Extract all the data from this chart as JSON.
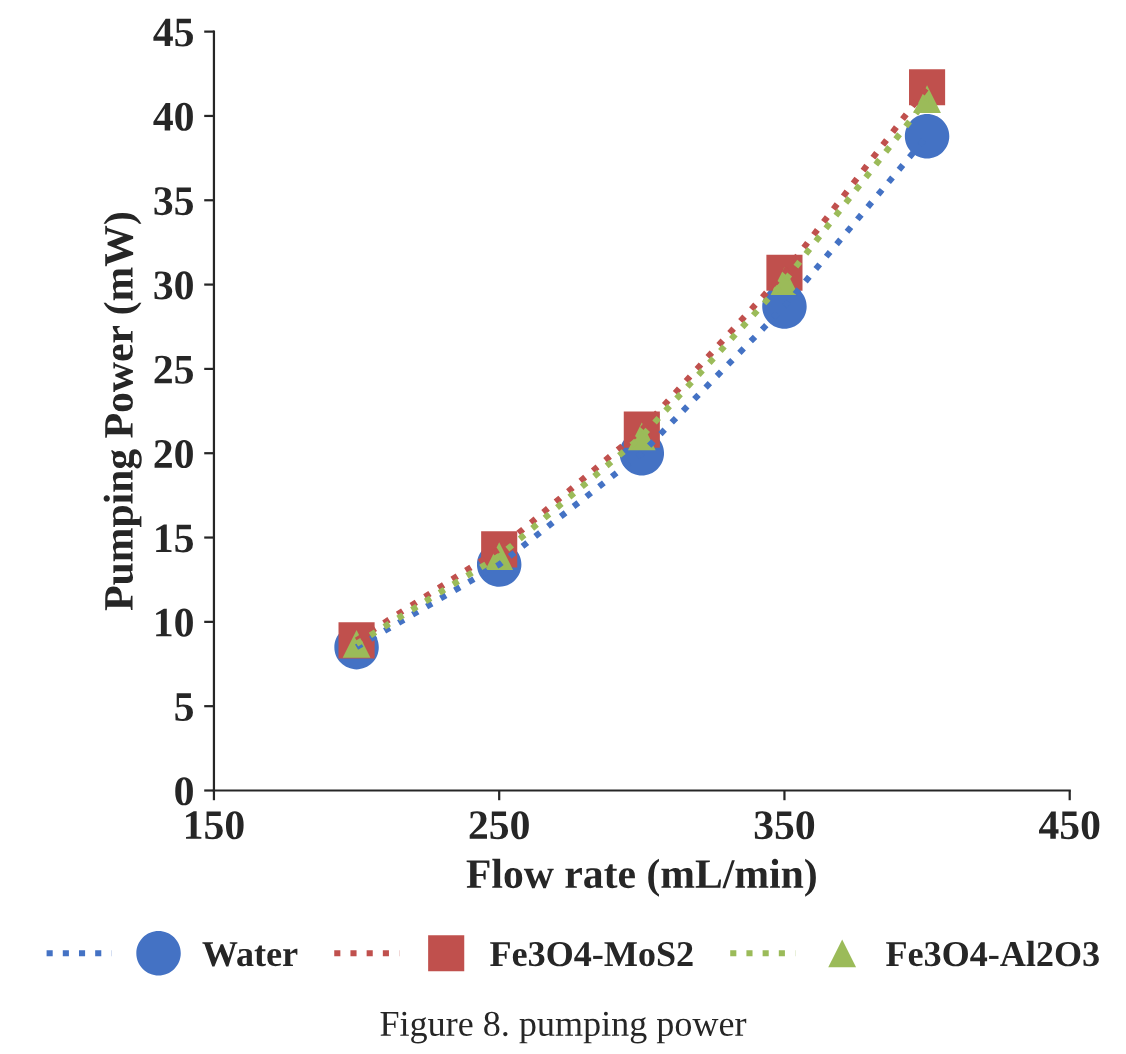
{
  "chart_data": {
    "type": "line",
    "xlabel": "Flow rate (mL/min)",
    "ylabel": "Pumping Power (mW)",
    "x": [
      200,
      250,
      300,
      350,
      400
    ],
    "series": [
      {
        "name": "Water",
        "color": "#4472c4",
        "marker": "circle",
        "values": [
          8.5,
          13.4,
          20.0,
          28.7,
          38.8
        ]
      },
      {
        "name": "Fe3O4-MoS2",
        "color": "#c0504d",
        "marker": "square",
        "values": [
          8.9,
          14.3,
          21.4,
          30.7,
          41.7
        ]
      },
      {
        "name": "Fe3O4-Al2O3",
        "color": "#9bbb59",
        "marker": "triangle",
        "values": [
          8.7,
          13.9,
          21.0,
          30.2,
          41.0
        ]
      }
    ],
    "line_style": "dotted",
    "grid": false,
    "legend": "bottom",
    "xlim": [
      150,
      450
    ],
    "xticks": [
      150,
      250,
      350,
      450
    ],
    "ylim": [
      0,
      45
    ],
    "yticks": [
      0,
      5,
      10,
      15,
      20,
      25,
      30,
      35,
      40,
      45
    ],
    "annotations": [
      "Figure 8. pumping power"
    ]
  }
}
